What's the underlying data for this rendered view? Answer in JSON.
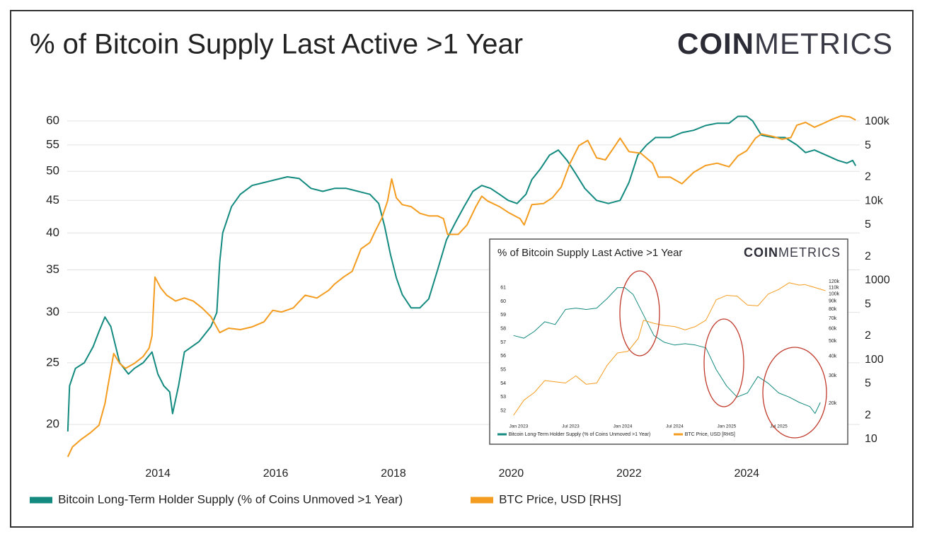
{
  "chart_data": [
    {
      "type": "line",
      "title": "% of Bitcoin Supply Last Active >1 Year",
      "brand": [
        "COIN",
        "METRICS"
      ],
      "series": [
        {
          "name": "Bitcoin Long-Term Holder Supply (% of Coins Unmoved >1 Year)",
          "color": "#138a7f",
          "x": [
            2012.47,
            2012.5,
            2012.6,
            2012.75,
            2012.9,
            2013.0,
            2013.1,
            2013.2,
            2013.35,
            2013.5,
            2013.6,
            2013.75,
            2013.9,
            2014.0,
            2014.1,
            2014.2,
            2014.25,
            2014.35,
            2014.45,
            2014.7,
            2014.9,
            2015.0,
            2015.05,
            2015.1,
            2015.25,
            2015.4,
            2015.6,
            2015.8,
            2016.0,
            2016.2,
            2016.4,
            2016.6,
            2016.8,
            2017.0,
            2017.2,
            2017.4,
            2017.6,
            2017.75,
            2017.85,
            2017.95,
            2018.05,
            2018.15,
            2018.3,
            2018.45,
            2018.6,
            2018.75,
            2018.9,
            2019.05,
            2019.2,
            2019.35,
            2019.5,
            2019.65,
            2019.8,
            2019.95,
            2020.1,
            2020.25,
            2020.35,
            2020.5,
            2020.65,
            2020.8,
            2020.95,
            2021.1,
            2021.25,
            2021.45,
            2021.65,
            2021.85,
            2022.0,
            2022.15,
            2022.3,
            2022.45,
            2022.7,
            2022.9,
            2023.1,
            2023.3,
            2023.5,
            2023.7,
            2023.85,
            2024.0,
            2024.1,
            2024.25,
            2024.45,
            2024.65,
            2024.85,
            2025.0,
            2025.15,
            2025.35,
            2025.55,
            2025.7,
            2025.8,
            2025.85
          ],
          "values": [
            19.5,
            23,
            24.5,
            25,
            26.5,
            28,
            29.5,
            28.5,
            25,
            24,
            24.5,
            25,
            26,
            24,
            23,
            22.5,
            20.8,
            23,
            26,
            27,
            28.5,
            30,
            36,
            40,
            44,
            46,
            47.5,
            48,
            48.5,
            49,
            48.7,
            47,
            46.5,
            47,
            47,
            46.5,
            46,
            44.5,
            41,
            37,
            34,
            32,
            30.5,
            30.5,
            31.5,
            35,
            39,
            41.5,
            44,
            46.5,
            47.5,
            47,
            46,
            45,
            44.5,
            46,
            48.5,
            50.5,
            53,
            54,
            52,
            49.5,
            47,
            45,
            44.5,
            45,
            48,
            53,
            55,
            56.5,
            56.5,
            57.5,
            58,
            59,
            59.5,
            59.5,
            61,
            61,
            60,
            57,
            56.5,
            56.5,
            55,
            53.5,
            54,
            53,
            52,
            51.5,
            52,
            51
          ]
        },
        {
          "name": "BTC Price, USD [RHS]",
          "color": "#f39c1f",
          "axis": "y2",
          "x": [
            2012.47,
            2012.55,
            2012.7,
            2012.85,
            2013.0,
            2013.1,
            2013.15,
            2013.25,
            2013.35,
            2013.45,
            2013.6,
            2013.75,
            2013.85,
            2013.9,
            2013.95,
            2014.05,
            2014.15,
            2014.3,
            2014.45,
            2014.6,
            2014.75,
            2014.9,
            2015.05,
            2015.2,
            2015.4,
            2015.6,
            2015.8,
            2015.95,
            2016.1,
            2016.3,
            2016.5,
            2016.7,
            2016.9,
            2017.0,
            2017.15,
            2017.3,
            2017.45,
            2017.6,
            2017.7,
            2017.8,
            2017.9,
            2017.97,
            2018.05,
            2018.15,
            2018.3,
            2018.45,
            2018.6,
            2018.75,
            2018.85,
            2018.92,
            2019.1,
            2019.25,
            2019.4,
            2019.5,
            2019.6,
            2019.8,
            2019.95,
            2020.15,
            2020.22,
            2020.35,
            2020.55,
            2020.7,
            2020.85,
            2021.0,
            2021.15,
            2021.3,
            2021.45,
            2021.6,
            2021.75,
            2021.85,
            2022.0,
            2022.2,
            2022.4,
            2022.5,
            2022.7,
            2022.9,
            2023.1,
            2023.3,
            2023.5,
            2023.7,
            2023.85,
            2024.0,
            2024.15,
            2024.25,
            2024.45,
            2024.6,
            2024.75,
            2024.85,
            2025.0,
            2025.15,
            2025.3,
            2025.45,
            2025.6,
            2025.75,
            2025.85
          ],
          "values": [
            6,
            8,
            10,
            12,
            15,
            28,
            46,
            120,
            90,
            78,
            90,
            110,
            140,
            200,
            1100,
            800,
            650,
            550,
            600,
            550,
            450,
            350,
            220,
            250,
            240,
            260,
            300,
            420,
            400,
            450,
            650,
            600,
            750,
            900,
            1100,
            1300,
            2500,
            3000,
            4300,
            6000,
            10000,
            19000,
            11000,
            9000,
            8500,
            7000,
            6500,
            6500,
            6000,
            3800,
            3800,
            5000,
            8500,
            11500,
            10000,
            8500,
            7200,
            6000,
            5000,
            9000,
            9300,
            11000,
            15000,
            30000,
            50000,
            58000,
            35000,
            33000,
            48000,
            62000,
            42000,
            40000,
            30000,
            20000,
            20000,
            16500,
            23000,
            28000,
            30000,
            27000,
            37000,
            43000,
            62000,
            70000,
            65000,
            60000,
            63000,
            90000,
            98000,
            85000,
            95000,
            107000,
            118000,
            115000,
            105000
          ]
        }
      ],
      "xlim": [
        2012.46,
        2025.92
      ],
      "xticks": [
        2014,
        2016,
        2018,
        2020,
        2022,
        2024
      ],
      "ylim": [
        17.6,
        63.3
      ],
      "yticks": [
        20,
        25,
        30,
        35,
        40,
        45,
        50,
        55,
        60
      ],
      "ylog": true,
      "y2lim": [
        5.5,
        157000
      ],
      "y2ticks": [
        10,
        {
          "value": 20,
          "label": "2"
        },
        {
          "value": 50,
          "label": "5"
        },
        100,
        {
          "value": 200,
          "label": "2"
        },
        {
          "value": 500,
          "label": "5"
        },
        1000,
        {
          "value": 2000,
          "label": "2"
        },
        {
          "value": 5000,
          "label": "5"
        },
        {
          "value": 10000,
          "label": "10k"
        },
        {
          "value": 20000,
          "label": "2"
        },
        {
          "value": 50000,
          "label": "5"
        },
        {
          "value": 100000,
          "label": "100k"
        }
      ],
      "y2log": true,
      "grid": true
    },
    {
      "type": "line",
      "title": "% of Bitcoin Supply Last Active >1 Year",
      "brand": [
        "COIN",
        "METRICS"
      ],
      "series": [
        {
          "name": "Bitcoin Long-Term Holder Supply (% of Coins Unmoved >1 Year)",
          "color": "#138a7f",
          "x": [
            2022.95,
            2023.05,
            2023.15,
            2023.25,
            2023.35,
            2023.45,
            2023.55,
            2023.65,
            2023.75,
            2023.85,
            2023.95,
            2024.02,
            2024.1,
            2024.2,
            2024.3,
            2024.4,
            2024.5,
            2024.6,
            2024.7,
            2024.8,
            2024.9,
            2025.0,
            2025.1,
            2025.2,
            2025.3,
            2025.4,
            2025.5,
            2025.6,
            2025.7,
            2025.8,
            2025.85,
            2025.9
          ],
          "values": [
            57.5,
            57.3,
            57.8,
            58.5,
            58.3,
            59.4,
            59.5,
            59.4,
            59.5,
            60.2,
            61.0,
            61.0,
            60.5,
            59.0,
            57.5,
            57.0,
            56.8,
            56.9,
            56.8,
            56.6,
            55.0,
            53.8,
            53.0,
            53.3,
            54.5,
            54.0,
            53.3,
            53.0,
            52.6,
            52.3,
            51.8,
            52.6
          ]
        },
        {
          "name": "BTC Price, USD [RHS]",
          "color": "#f39c1f",
          "axis": "y2",
          "x": [
            2022.95,
            2023.05,
            2023.15,
            2023.25,
            2023.35,
            2023.45,
            2023.55,
            2023.65,
            2023.75,
            2023.85,
            2023.95,
            2024.05,
            2024.15,
            2024.2,
            2024.3,
            2024.4,
            2024.5,
            2024.6,
            2024.7,
            2024.8,
            2024.9,
            2025.0,
            2025.1,
            2025.2,
            2025.3,
            2025.4,
            2025.5,
            2025.6,
            2025.7,
            2025.75,
            2025.85,
            2025.95
          ],
          "values": [
            16800,
            21000,
            23500,
            28000,
            27500,
            27000,
            30000,
            26500,
            27000,
            35000,
            42000,
            43000,
            52000,
            68000,
            65000,
            63000,
            62000,
            59000,
            62000,
            68000,
            92000,
            98000,
            97000,
            85000,
            84000,
            100000,
            107000,
            118000,
            114000,
            115000,
            110000,
            105000
          ]
        }
      ],
      "xlim": [
        2022.925,
        2025.96
      ],
      "xticks": [
        {
          "value": 2023.0,
          "label": "Jan 2023"
        },
        {
          "value": 2023.5,
          "label": "Jul 2023"
        },
        {
          "value": 2024.0,
          "label": "Jan 2024"
        },
        {
          "value": 2024.5,
          "label": "Jul 2024"
        },
        {
          "value": 2025.0,
          "label": "Jan 2025"
        },
        {
          "value": 2025.5,
          "label": "Jul 2025"
        }
      ],
      "ylim": [
        51.1,
        61.6
      ],
      "yticks": [
        52,
        53,
        54,
        55,
        56,
        57,
        58,
        59,
        60,
        61
      ],
      "ylog": false,
      "y2lim": [
        15000,
        124000
      ],
      "y2ticks": [
        {
          "value": 20000,
          "label": "20k"
        },
        {
          "value": 30000,
          "label": "30k"
        },
        {
          "value": 40000,
          "label": "40k"
        },
        {
          "value": 50000,
          "label": "50k"
        },
        {
          "value": 60000,
          "label": "60k"
        },
        {
          "value": 70000,
          "label": "70k"
        },
        {
          "value": 80000,
          "label": "80k"
        },
        {
          "value": 90000,
          "label": "90k"
        },
        {
          "value": 100000,
          "label": "100k"
        },
        {
          "value": 110000,
          "label": "110k"
        },
        {
          "value": 120000,
          "label": "120k"
        }
      ],
      "y2log": true,
      "grid": false
    }
  ]
}
